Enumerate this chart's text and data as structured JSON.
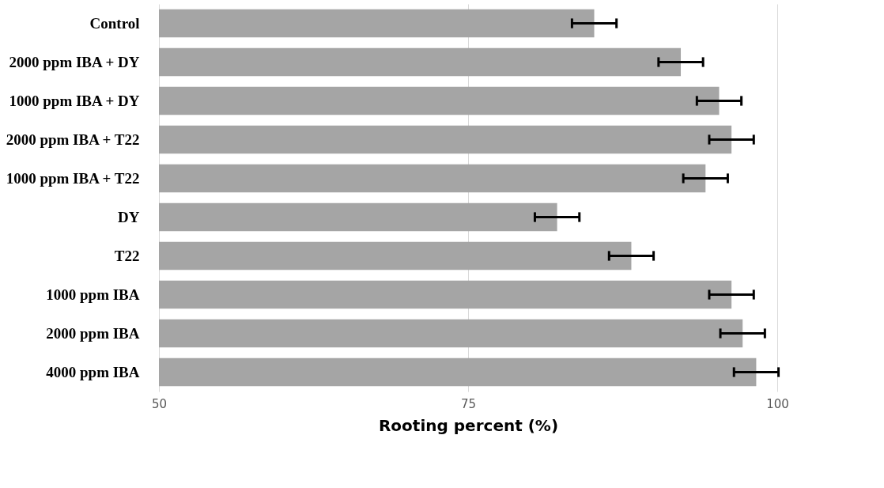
{
  "chart_data": {
    "type": "bar",
    "orientation": "horizontal",
    "xlabel": "Rooting percent (%)",
    "categories": [
      "Control",
      "2000 ppm IBA + DY",
      "1000 ppm IBA + DY",
      "2000 ppm IBA + T22",
      "1000 ppm IBA + T22",
      "DY",
      "T22",
      "1000 ppm IBA",
      "2000 ppm IBA",
      "4000 ppm IBA"
    ],
    "values": [
      85.2,
      92.2,
      95.3,
      96.3,
      94.2,
      82.2,
      88.2,
      96.3,
      97.2,
      98.3
    ],
    "errors": [
      1.8,
      1.8,
      1.8,
      1.8,
      1.8,
      1.8,
      1.8,
      1.8,
      1.8,
      1.8
    ],
    "color": "#a5a5a5",
    "xlim": [
      50,
      100
    ],
    "xticks": [
      50,
      75,
      100
    ],
    "grid": "x"
  }
}
